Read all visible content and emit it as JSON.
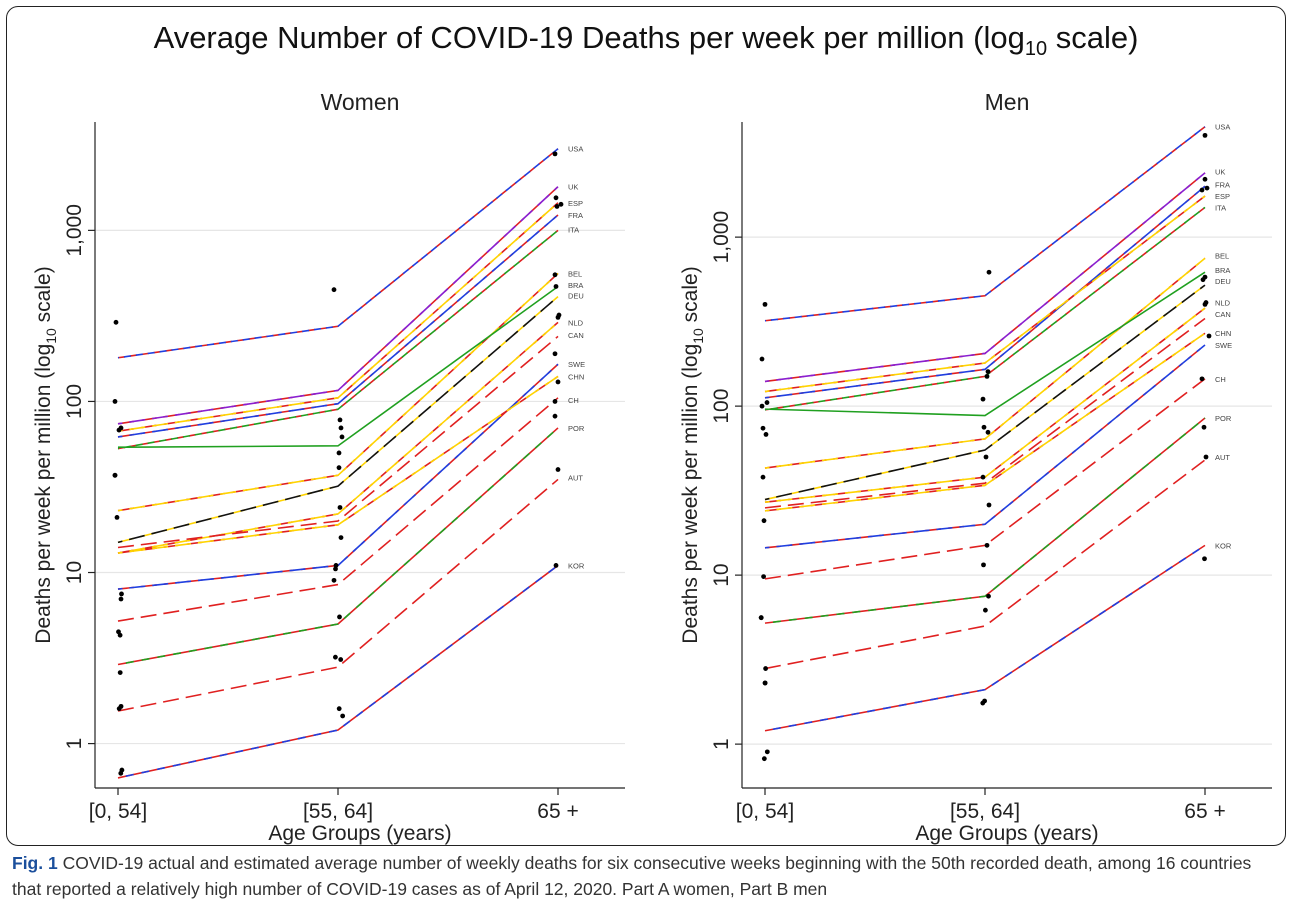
{
  "figure": {
    "title_main": "Average Number of COVID-19 Deaths per week per million (log",
    "title_sub": "10",
    "title_end": " scale)",
    "caption_label": "Fig. 1",
    "caption_text": " COVID-19 actual and estimated average number of weekly deaths for six consecutive weeks beginning with the 50th recorded death, among 16 countries that reported a relatively high number of COVID-19 cases as of April 12, 2020. Part A women, Part B men"
  },
  "chart_data": [
    {
      "type": "line",
      "title": "Women",
      "xlabel": "Age Groups (years)",
      "ylabel_main": "Deaths per week per million (log",
      "ylabel_sub": "10",
      "ylabel_end": " scale)",
      "y_scale": "log10",
      "ylim": [
        0.55,
        4300
      ],
      "categories": [
        "[0, 54]",
        "[55, 64]",
        "65 +"
      ],
      "yticks": [
        1,
        10,
        100,
        1000
      ],
      "ytick_labels": [
        "1",
        "10",
        "100",
        "1,000"
      ],
      "grid": "horizontal",
      "series": [
        {
          "name": "USA",
          "colors": [
            "#e02020",
            "#1f3fe0"
          ],
          "dash": "short",
          "values": [
            180,
            275,
            3000
          ]
        },
        {
          "name": "UK",
          "colors": [
            "#e02020",
            "#8a1fd0"
          ],
          "dash": "long",
          "values": [
            74,
            116,
            1800
          ]
        },
        {
          "name": "ESP",
          "colors": [
            "#e02020",
            "#ffd400"
          ],
          "dash": "long",
          "values": [
            67,
            105,
            1450
          ]
        },
        {
          "name": "FRA",
          "colors": [
            "#e02020",
            "#1f3fe0"
          ],
          "dash": "long",
          "values": [
            62,
            97,
            1230
          ]
        },
        {
          "name": "ITA",
          "colors": [
            "#e02020",
            "#20a020"
          ],
          "dash": "short",
          "values": [
            53,
            90,
            1000
          ]
        },
        {
          "name": "BEL",
          "colors": [
            "#e02020",
            "#ffd400"
          ],
          "dash": "long",
          "values": [
            23,
            37,
            560
          ]
        },
        {
          "name": "BRA",
          "colors": [
            "#20a020",
            "#20a020"
          ],
          "dash": "solid",
          "values": [
            54,
            55,
            470
          ]
        },
        {
          "name": "DEU",
          "colors": [
            "#ffd400",
            "#111111"
          ],
          "dash": "long",
          "values": [
            15,
            32,
            410
          ]
        },
        {
          "name": "NLD",
          "colors": [
            "#e02020",
            "#ffd400"
          ],
          "dash": "long",
          "values": [
            13,
            22,
            290
          ]
        },
        {
          "name": "CAN",
          "colors": [
            "#e02020",
            "#e02020"
          ],
          "dash": "long",
          "values": [
            14,
            20,
            240
          ]
        },
        {
          "name": "SWE",
          "colors": [
            "#e02020",
            "#1f3fe0"
          ],
          "dash": "long",
          "values": [
            8,
            11,
            165
          ]
        },
        {
          "name": "CHN",
          "colors": [
            "#e02020",
            "#ffd400"
          ],
          "dash": "long",
          "values": [
            13,
            19,
            140
          ]
        },
        {
          "name": "CH",
          "colors": [
            "#e02020",
            "#e02020"
          ],
          "dash": "long",
          "values": [
            5.2,
            8.5,
            105
          ]
        },
        {
          "name": "POR",
          "colors": [
            "#e02020",
            "#20a020"
          ],
          "dash": "solid",
          "values": [
            2.9,
            5,
            70
          ]
        },
        {
          "name": "AUT",
          "colors": [
            "#e02020",
            "#e02020"
          ],
          "dash": "long",
          "values": [
            1.55,
            2.8,
            35
          ]
        },
        {
          "name": "KOR",
          "colors": [
            "#e02020",
            "#1f3fe0"
          ],
          "dash": "solid",
          "values": [
            0.63,
            1.2,
            11
          ]
        }
      ],
      "end_labels": [
        {
          "text": "USA",
          "y": 3000
        },
        {
          "text": "UK",
          "y": 1800
        },
        {
          "text": "ESP",
          "y": 1450
        },
        {
          "text": "FRA",
          "y": 1230
        },
        {
          "text": "ITA",
          "y": 1010
        },
        {
          "text": "BEL",
          "y": 560
        },
        {
          "text": "BRA",
          "y": 480
        },
        {
          "text": "DEU",
          "y": 415
        },
        {
          "text": "NLD",
          "y": 290
        },
        {
          "text": "CAN",
          "y": 245
        },
        {
          "text": "SWE",
          "y": 165
        },
        {
          "text": "CHN",
          "y": 140
        },
        {
          "text": "CH",
          "y": 102
        },
        {
          "text": "POR",
          "y": 70
        },
        {
          "text": "AUT",
          "y": 36
        },
        {
          "text": "KOR",
          "y": 11
        }
      ],
      "points": [
        [
          0,
          290
        ],
        [
          0,
          100
        ],
        [
          0,
          70
        ],
        [
          0,
          68
        ],
        [
          0,
          37
        ],
        [
          0,
          37
        ],
        [
          0,
          21
        ],
        [
          0,
          7.5
        ],
        [
          0,
          7
        ],
        [
          0,
          4.5
        ],
        [
          0,
          4.3
        ],
        [
          0,
          2.6
        ],
        [
          0,
          1.65
        ],
        [
          0,
          1.6
        ],
        [
          0,
          0.7
        ],
        [
          0,
          0.67
        ],
        [
          1,
          450
        ],
        [
          1,
          78
        ],
        [
          1,
          70
        ],
        [
          1,
          62
        ],
        [
          1,
          50
        ],
        [
          1,
          41
        ],
        [
          1,
          24
        ],
        [
          1,
          16
        ],
        [
          1,
          11
        ],
        [
          1,
          10.5
        ],
        [
          1,
          9
        ],
        [
          1,
          5.5
        ],
        [
          1,
          3.2
        ],
        [
          1,
          3.1
        ],
        [
          1,
          1.6
        ],
        [
          1,
          1.45
        ],
        [
          2,
          2800
        ],
        [
          2,
          1550
        ],
        [
          2,
          1420
        ],
        [
          2,
          1380
        ],
        [
          2,
          550
        ],
        [
          2,
          470
        ],
        [
          2,
          320
        ],
        [
          2,
          310
        ],
        [
          2,
          190
        ],
        [
          2,
          130
        ],
        [
          2,
          100
        ],
        [
          2,
          82
        ],
        [
          2,
          40
        ],
        [
          2,
          11
        ]
      ]
    },
    {
      "type": "line",
      "title": "Men",
      "xlabel": "Age Groups (years)",
      "ylabel_main": "Deaths per week per million (log",
      "ylabel_sub": "10",
      "ylabel_end": " scale)",
      "y_scale": "log10",
      "ylim": [
        0.55,
        4800
      ],
      "categories": [
        "[0, 54]",
        "[55, 64]",
        "65 +"
      ],
      "yticks": [
        1,
        10,
        100,
        1000
      ],
      "ytick_labels": [
        "1",
        "10",
        "100",
        "1,000"
      ],
      "grid": "horizontal",
      "series": [
        {
          "name": "USA",
          "colors": [
            "#e02020",
            "#1f3fe0"
          ],
          "dash": "short",
          "values": [
            320,
            450,
            4500
          ]
        },
        {
          "name": "UK",
          "colors": [
            "#e02020",
            "#8a1fd0"
          ],
          "dash": "long",
          "values": [
            140,
            205,
            2400
          ]
        },
        {
          "name": "FRA",
          "colors": [
            "#e02020",
            "#1f3fe0"
          ],
          "dash": "long",
          "values": [
            112,
            165,
            2000
          ]
        },
        {
          "name": "ESP",
          "colors": [
            "#e02020",
            "#ffd400"
          ],
          "dash": "long",
          "values": [
            122,
            180,
            1750
          ]
        },
        {
          "name": "ITA",
          "colors": [
            "#e02020",
            "#20a020"
          ],
          "dash": "short",
          "values": [
            95,
            150,
            1500
          ]
        },
        {
          "name": "BEL",
          "colors": [
            "#e02020",
            "#ffd400"
          ],
          "dash": "long",
          "values": [
            43,
            64,
            750
          ]
        },
        {
          "name": "BRA",
          "colors": [
            "#20a020",
            "#20a020"
          ],
          "dash": "solid",
          "values": [
            96,
            88,
            620
          ]
        },
        {
          "name": "DEU",
          "colors": [
            "#ffd400",
            "#111111"
          ],
          "dash": "long",
          "values": [
            28,
            55,
            520
          ]
        },
        {
          "name": "NLD",
          "colors": [
            "#e02020",
            "#ffd400"
          ],
          "dash": "long",
          "values": [
            27,
            38,
            380
          ]
        },
        {
          "name": "CAN",
          "colors": [
            "#e02020",
            "#e02020"
          ],
          "dash": "long",
          "values": [
            25,
            35,
            330
          ]
        },
        {
          "name": "CHN",
          "colors": [
            "#e02020",
            "#ffd400"
          ],
          "dash": "long",
          "values": [
            24,
            34,
            270
          ]
        },
        {
          "name": "SWE",
          "colors": [
            "#e02020",
            "#1f3fe0"
          ],
          "dash": "long",
          "values": [
            14.5,
            20,
            230
          ]
        },
        {
          "name": "CH",
          "colors": [
            "#e02020",
            "#e02020"
          ],
          "dash": "long",
          "values": [
            9.5,
            15,
            145
          ]
        },
        {
          "name": "POR",
          "colors": [
            "#e02020",
            "#20a020"
          ],
          "dash": "solid",
          "values": [
            5.2,
            7.5,
            85
          ]
        },
        {
          "name": "AUT",
          "colors": [
            "#e02020",
            "#e02020"
          ],
          "dash": "long",
          "values": [
            2.8,
            5,
            48
          ]
        },
        {
          "name": "KOR",
          "colors": [
            "#e02020",
            "#1f3fe0"
          ],
          "dash": "solid",
          "values": [
            1.2,
            2.1,
            15
          ]
        }
      ],
      "end_labels": [
        {
          "text": "USA",
          "y": 4500
        },
        {
          "text": "UK",
          "y": 2450
        },
        {
          "text": "FRA",
          "y": 2050
        },
        {
          "text": "ESP",
          "y": 1750
        },
        {
          "text": "ITA",
          "y": 1500
        },
        {
          "text": "BEL",
          "y": 780
        },
        {
          "text": "BRA",
          "y": 640
        },
        {
          "text": "DEU",
          "y": 550
        },
        {
          "text": "NLD",
          "y": 410
        },
        {
          "text": "CAN",
          "y": 350
        },
        {
          "text": "CHN",
          "y": 270
        },
        {
          "text": "SWE",
          "y": 230
        },
        {
          "text": "CH",
          "y": 145
        },
        {
          "text": "POR",
          "y": 85
        },
        {
          "text": "AUT",
          "y": 50
        },
        {
          "text": "KOR",
          "y": 15
        }
      ],
      "points": [
        [
          0,
          400
        ],
        [
          0,
          190
        ],
        [
          0,
          105
        ],
        [
          0,
          100
        ],
        [
          0,
          74
        ],
        [
          0,
          68
        ],
        [
          0,
          38
        ],
        [
          0,
          21
        ],
        [
          0,
          9.8
        ],
        [
          0,
          5.6
        ],
        [
          0,
          5.6
        ],
        [
          0,
          2.8
        ],
        [
          0,
          2.3
        ],
        [
          0,
          2.3
        ],
        [
          0,
          0.9
        ],
        [
          0,
          0.82
        ],
        [
          1,
          620
        ],
        [
          1,
          160
        ],
        [
          1,
          150
        ],
        [
          1,
          110
        ],
        [
          1,
          75
        ],
        [
          1,
          70
        ],
        [
          1,
          50
        ],
        [
          1,
          38
        ],
        [
          1,
          26
        ],
        [
          1,
          15
        ],
        [
          1,
          11.5
        ],
        [
          1,
          7.5
        ],
        [
          1,
          6.2
        ],
        [
          1,
          1.8
        ],
        [
          1,
          1.75
        ],
        [
          2,
          4000
        ],
        [
          2,
          2200
        ],
        [
          2,
          1950
        ],
        [
          2,
          1900
        ],
        [
          2,
          580
        ],
        [
          2,
          560
        ],
        [
          2,
          410
        ],
        [
          2,
          400
        ],
        [
          2,
          260
        ],
        [
          2,
          145
        ],
        [
          2,
          75
        ],
        [
          2,
          50
        ],
        [
          2,
          12.5
        ]
      ]
    }
  ]
}
